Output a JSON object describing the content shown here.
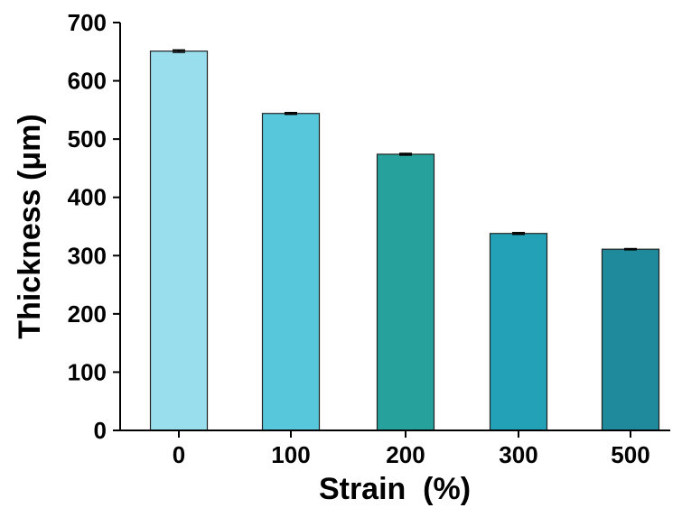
{
  "chart_data": {
    "type": "bar",
    "categories": [
      "0",
      "100",
      "200",
      "300",
      "500"
    ],
    "values": [
      651,
      544,
      474,
      338,
      311
    ],
    "errors": [
      2,
      1.5,
      1.5,
      1.5,
      1
    ],
    "title": "",
    "xlabel": "Strain  (%)",
    "ylabel": "Thickness (μm)",
    "ylim": [
      0,
      700
    ],
    "yticks": [
      "0",
      "100",
      "200",
      "300",
      "400",
      "500",
      "600",
      "700"
    ],
    "grid": false,
    "legend": "none",
    "colors": [
      "#99deed",
      "#57c8dc",
      "#26a19b",
      "#22a1b7",
      "#1f8a9b"
    ],
    "edge_color": "#222222"
  }
}
